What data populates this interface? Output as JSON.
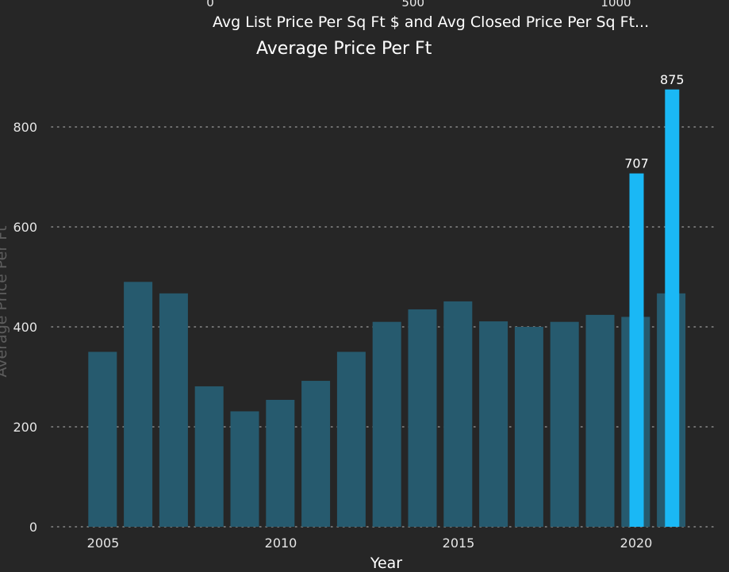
{
  "top_axis": {
    "label": "Avg List Price Per Sq Ft $ and Avg Closed Price Per Sq Ft...",
    "ticks": [
      {
        "value": 0,
        "label": "0"
      },
      {
        "value": 500,
        "label": "500"
      },
      {
        "value": 1000,
        "label": "1000"
      }
    ]
  },
  "chart_data": {
    "type": "bar",
    "title": "Average Price Per Ft",
    "xlabel": "Year",
    "ylabel": "Average Price Per Ft",
    "ylim": [
      0,
      900
    ],
    "grid": true,
    "y_ticks": [
      0,
      200,
      400,
      600,
      800
    ],
    "x_ticks": [
      2005,
      2010,
      2015,
      2020
    ],
    "series": [
      {
        "color": "#265a6e",
        "points": [
          {
            "year": 2005,
            "value": 350
          },
          {
            "year": 2006,
            "value": 490
          },
          {
            "year": 2007,
            "value": 467
          },
          {
            "year": 2008,
            "value": 281
          },
          {
            "year": 2009,
            "value": 231
          },
          {
            "year": 2010,
            "value": 254
          },
          {
            "year": 2011,
            "value": 292
          },
          {
            "year": 2012,
            "value": 350
          },
          {
            "year": 2013,
            "value": 410
          },
          {
            "year": 2014,
            "value": 435
          },
          {
            "year": 2015,
            "value": 451
          },
          {
            "year": 2016,
            "value": 411
          },
          {
            "year": 2017,
            "value": 400
          },
          {
            "year": 2018,
            "value": 410
          },
          {
            "year": 2019,
            "value": 424
          },
          {
            "year": 2020,
            "value": 420
          },
          {
            "year": 2021,
            "value": 467
          }
        ]
      },
      {
        "color": "#1ab8f5",
        "points": [
          {
            "year": 2020,
            "value": 707,
            "label": "707"
          },
          {
            "year": 2021,
            "value": 875,
            "label": "875"
          }
        ]
      }
    ]
  }
}
